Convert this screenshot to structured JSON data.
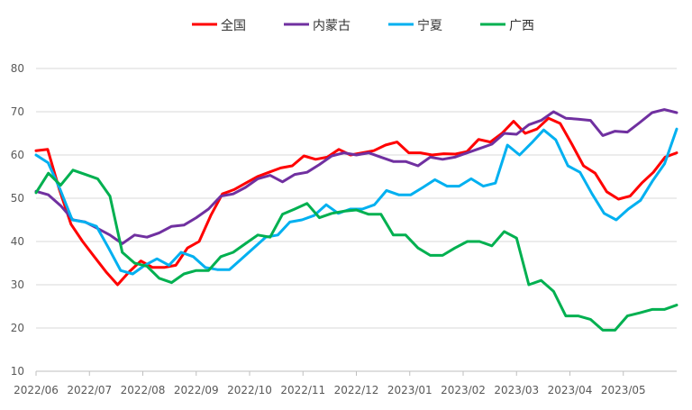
{
  "chart_data": {
    "type": "line",
    "title": "",
    "xlabel": "",
    "ylabel": "",
    "ylim": [
      10,
      80
    ],
    "y_ticks": [
      10,
      20,
      30,
      40,
      50,
      60,
      70,
      80
    ],
    "x_tick_labels": [
      "2022/06",
      "2022/07",
      "2022/08",
      "2022/09",
      "2022/10",
      "2022/11",
      "2022/12",
      "2023/01",
      "2023/02",
      "2023/03",
      "2023/04",
      "2023/05"
    ],
    "grid": "horizontal",
    "legend_position": "top",
    "series": [
      {
        "name": "全国",
        "color": "#ff0000",
        "values": [
          61.0,
          61.3,
          52.0,
          44.0,
          40.0,
          36.5,
          33.0,
          30.0,
          33.0,
          35.5,
          34.0,
          34.0,
          34.5,
          38.5,
          40.0,
          46.0,
          51.0,
          52.0,
          53.5,
          55.0,
          56.0,
          57.0,
          57.5,
          59.8,
          59.0,
          59.5,
          61.3,
          60.0,
          60.5,
          61.0,
          62.3,
          63.0,
          60.5,
          60.5,
          60.0,
          60.3,
          60.2,
          60.8,
          63.6,
          63.0,
          65.0,
          67.8,
          65.0,
          66.0,
          68.5,
          67.3,
          62.5,
          57.5,
          55.8,
          51.5,
          49.8,
          50.5,
          53.5,
          56.0,
          59.5,
          60.5
        ]
      },
      {
        "name": "内蒙古",
        "color": "#7030a0",
        "values": [
          51.6,
          50.8,
          48.3,
          45.0,
          44.5,
          43.0,
          41.5,
          39.5,
          41.5,
          41.0,
          42.0,
          43.5,
          43.8,
          45.5,
          47.5,
          50.5,
          51.0,
          52.5,
          54.5,
          55.3,
          53.8,
          55.5,
          56.0,
          57.8,
          59.8,
          60.5,
          60.0,
          60.5,
          59.5,
          58.5,
          58.5,
          57.5,
          59.5,
          59.0,
          59.5,
          60.5,
          61.5,
          62.5,
          65.0,
          64.8,
          67.0,
          68.0,
          70.0,
          68.5,
          68.3,
          68.0,
          64.5,
          65.5,
          65.3,
          67.5,
          69.8,
          70.5,
          69.8
        ]
      },
      {
        "name": "宁夏",
        "color": "#00b0f0",
        "values": [
          60.0,
          58.2,
          52.0,
          45.0,
          44.5,
          43.5,
          38.5,
          33.3,
          32.5,
          34.5,
          36.0,
          34.5,
          37.5,
          36.5,
          34.0,
          33.5,
          33.5,
          36.0,
          38.5,
          41.0,
          41.5,
          44.5,
          45.0,
          46.0,
          48.5,
          46.5,
          47.5,
          47.5,
          48.5,
          51.8,
          50.8,
          50.8,
          52.5,
          54.3,
          52.8,
          52.8,
          54.5,
          52.8,
          53.5,
          62.3,
          60.0,
          62.8,
          65.8,
          63.5,
          57.5,
          56.0,
          51.0,
          46.5,
          45.0,
          47.5,
          49.5,
          54.0,
          58.0,
          66.0
        ]
      },
      {
        "name": "广西",
        "color": "#00b050",
        "values": [
          51.3,
          55.8,
          53.0,
          56.5,
          55.5,
          54.5,
          50.5,
          37.5,
          35.0,
          34.3,
          31.5,
          30.5,
          32.5,
          33.3,
          33.3,
          36.5,
          37.5,
          39.5,
          41.5,
          41.0,
          46.3,
          47.5,
          48.8,
          45.5,
          46.5,
          47.0,
          47.3,
          46.3,
          46.3,
          41.5,
          41.5,
          38.5,
          36.8,
          36.8,
          38.5,
          40.0,
          40.0,
          39.0,
          42.3,
          40.8,
          30.0,
          31.0,
          28.5,
          22.8,
          22.8,
          22.0,
          19.5,
          19.5,
          22.8,
          23.5,
          24.3,
          24.3,
          25.3
        ]
      }
    ]
  }
}
